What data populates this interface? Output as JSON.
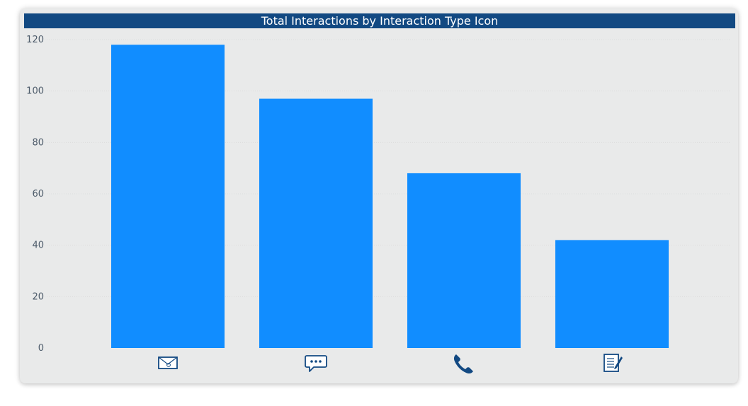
{
  "chart_data": {
    "type": "bar",
    "title": "Total Interactions by Interaction Type Icon",
    "categories": [
      "email-icon",
      "chat-icon",
      "phone-icon",
      "note-icon"
    ],
    "values": [
      118,
      97,
      68,
      42
    ],
    "ylim": [
      0,
      120
    ],
    "yticks": [
      0,
      20,
      40,
      60,
      80,
      100,
      120
    ],
    "grid": true,
    "bar_color": "#118dff",
    "icon_color": "#124982",
    "title_background": "#124982"
  }
}
